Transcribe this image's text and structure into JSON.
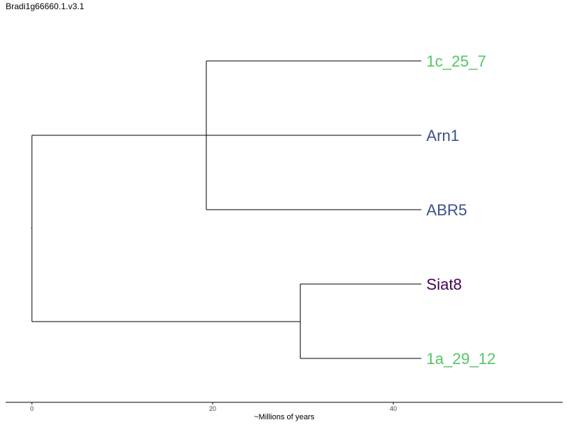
{
  "title": "Bradi1g66660.1.v3.1",
  "tree": {
    "tips": [
      {
        "label": "1c_25_7",
        "color": "#55c667"
      },
      {
        "label": "Arn1",
        "color": "#3b528b"
      },
      {
        "label": "ABR5",
        "color": "#3b528b"
      },
      {
        "label": "Siat8",
        "color": "#440154"
      },
      {
        "label": "1a_29_12",
        "color": "#55c667"
      }
    ],
    "clades": [
      {
        "members": [
          "1c_25_7",
          "Arn1",
          "ABR5"
        ],
        "node_time": 19.3
      },
      {
        "members": [
          "Siat8",
          "1a_29_12"
        ],
        "node_time": 29.7
      },
      {
        "members": [
          "all"
        ],
        "node_time": 0
      }
    ],
    "tip_time": 43.1
  },
  "axis": {
    "label": "~Millions of years",
    "ticks": [
      "0",
      "20",
      "40"
    ],
    "tick_values": [
      0,
      20,
      40
    ]
  }
}
